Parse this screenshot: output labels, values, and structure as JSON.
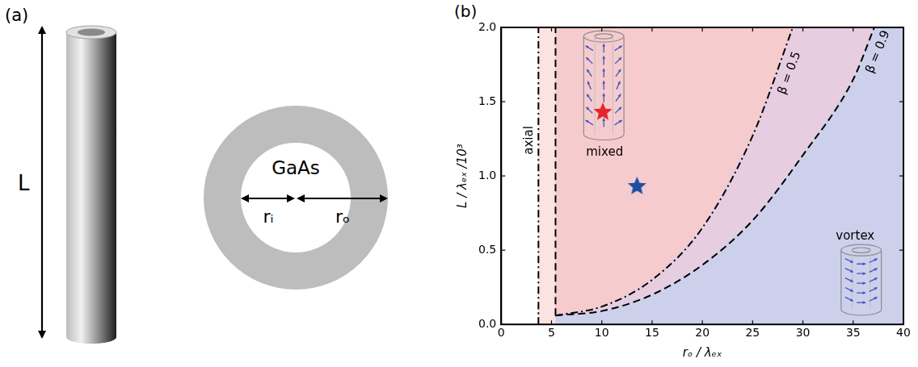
{
  "panel_a": {
    "label": "(a)",
    "length_label": "L",
    "material": "GaAs",
    "inner_radius_label": "rᵢ",
    "outer_radius_label": "rₒ"
  },
  "chart_data": {
    "type": "line",
    "panel_label": "(b)",
    "x_label": "rₒ / λₑₓ",
    "y_label": "L / λₑₓ /10³",
    "xlim": [
      0,
      40
    ],
    "xticks": [
      0,
      5,
      10,
      15,
      20,
      25,
      30,
      35,
      40
    ],
    "ylim": [
      0,
      2
    ],
    "yticks": [
      {
        "value": 0,
        "label": "0.0"
      },
      0.5,
      {
        "value": 1,
        "label": "1.0"
      },
      1.5,
      {
        "value": 2,
        "label": "2.0"
      }
    ],
    "grid": false,
    "annotations": [
      "axial",
      "mixed",
      "vortex"
    ],
    "series": [
      {
        "x": [
          3.7,
          3.7
        ],
        "values": [
          0,
          2
        ],
        "color": "#000000",
        "line_style": "dashdot"
      },
      {
        "x": [
          5.4,
          5.4
        ],
        "values": [
          0.06,
          2
        ],
        "color": "#000000",
        "line_style": "dashed"
      },
      {
        "name": "β = 0.5",
        "x": [
          5.4,
          10,
          15,
          20,
          25,
          29
        ],
        "values": [
          0.06,
          0.12,
          0.3,
          0.65,
          1.27,
          2
        ],
        "color": "#000000",
        "line_style": "dashdot"
      },
      {
        "name": "β = 0.9",
        "x": [
          5.4,
          10,
          15,
          20,
          25,
          30,
          35,
          37.1
        ],
        "values": [
          0.06,
          0.09,
          0.2,
          0.4,
          0.7,
          1.14,
          1.65,
          2
        ],
        "color": "#000000",
        "line_style": "dashed"
      },
      {
        "type": "scatter",
        "marker": "star",
        "x": [
          13.5
        ],
        "values": [
          0.93
        ],
        "color": "#1c4fa0"
      },
      {
        "type": "scatter",
        "marker": "star",
        "x": [
          10.1
        ],
        "values": [
          1.43
        ],
        "color": "#e4262b"
      }
    ]
  }
}
